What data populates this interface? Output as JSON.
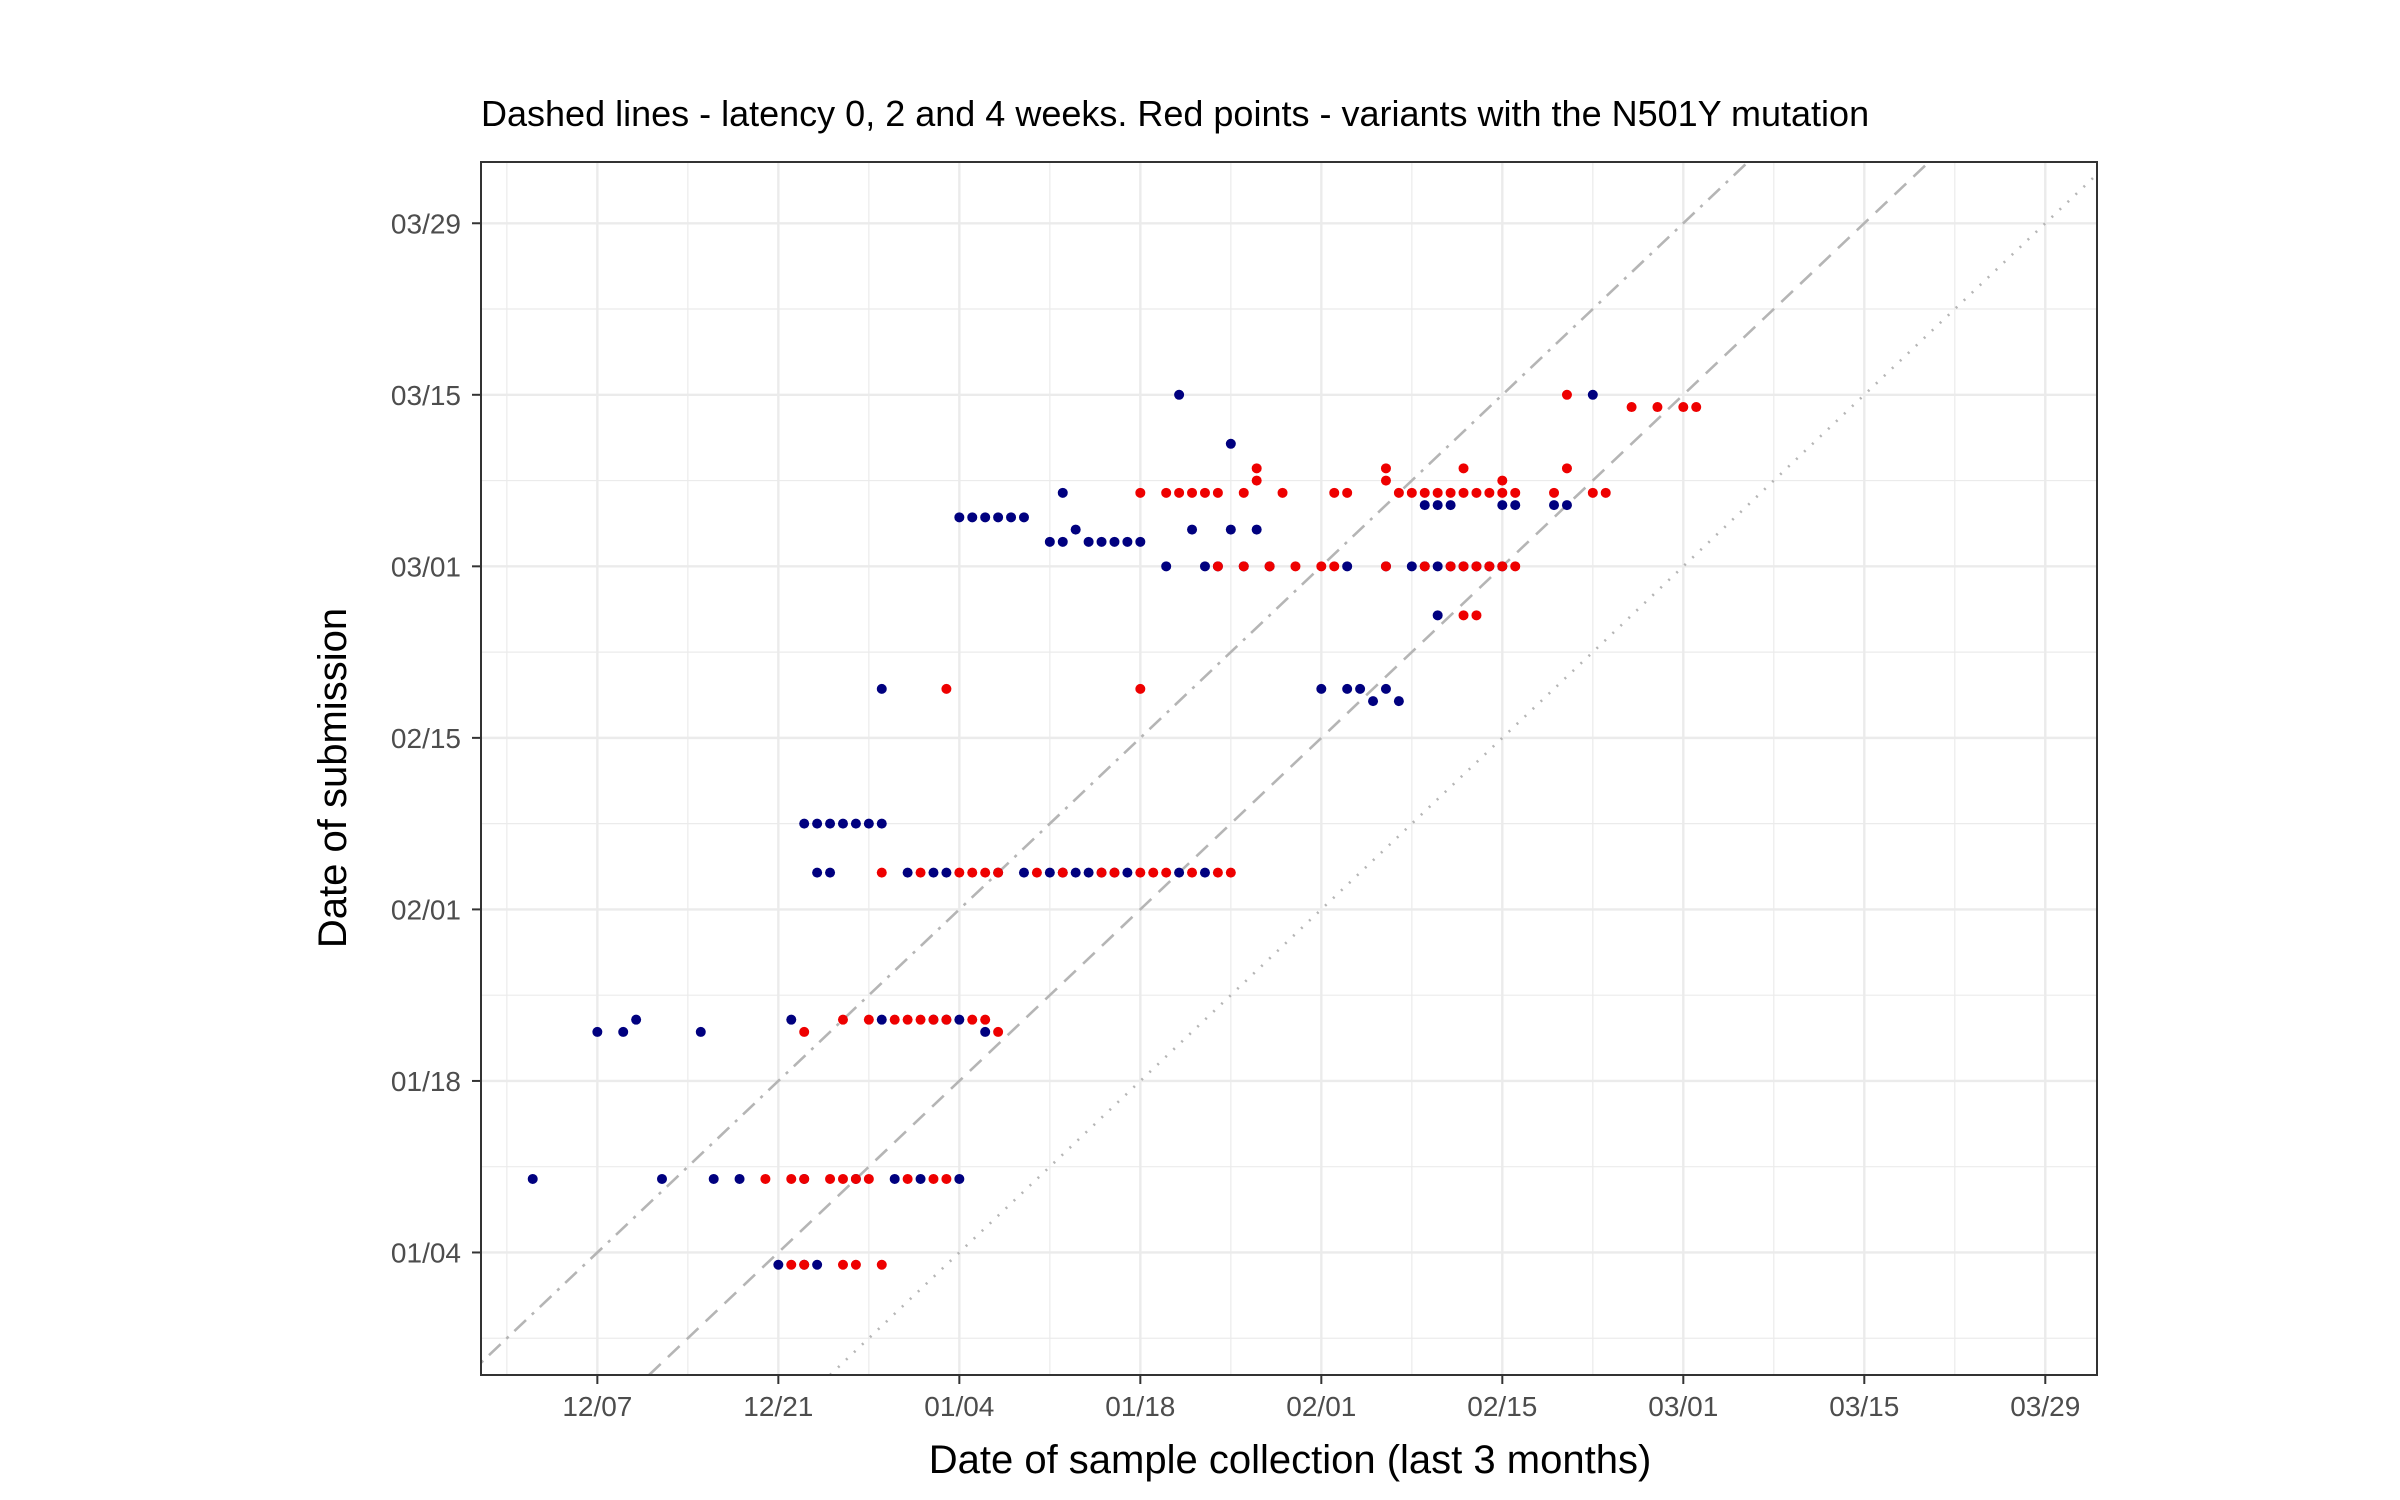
{
  "chart_data": {
    "type": "scatter",
    "title": "Dashed lines - latency 0, 2 and 4 weeks. Red points - variants with the N501Y mutation",
    "xlabel": "Date of sample collection (last 3 months)",
    "ylabel": "Date of submission",
    "x_axis": {
      "type": "date",
      "range": [
        "2020-11-28",
        "2021-04-02"
      ],
      "ticks": [
        {
          "date": "2020-12-07",
          "label": "12/07"
        },
        {
          "date": "2020-12-21",
          "label": "12/21"
        },
        {
          "date": "2021-01-04",
          "label": "01/04"
        },
        {
          "date": "2021-01-18",
          "label": "01/18"
        },
        {
          "date": "2021-02-01",
          "label": "02/01"
        },
        {
          "date": "2021-02-15",
          "label": "02/15"
        },
        {
          "date": "2021-03-01",
          "label": "03/01"
        },
        {
          "date": "2021-03-15",
          "label": "03/15"
        },
        {
          "date": "2021-03-29",
          "label": "03/29"
        }
      ]
    },
    "y_axis": {
      "type": "date",
      "range": [
        "2020-12-25",
        "2021-04-03"
      ],
      "ticks": [
        {
          "date": "2021-01-04",
          "label": "01/04"
        },
        {
          "date": "2021-01-18",
          "label": "01/18"
        },
        {
          "date": "2021-02-01",
          "label": "02/01"
        },
        {
          "date": "2021-02-15",
          "label": "02/15"
        },
        {
          "date": "2021-03-01",
          "label": "03/01"
        },
        {
          "date": "2021-03-15",
          "label": "03/15"
        },
        {
          "date": "2021-03-29",
          "label": "03/29"
        }
      ]
    },
    "grid": true,
    "reference_lines": [
      {
        "latency_weeks": 0,
        "style": "dotted",
        "color": "#b5b5b5"
      },
      {
        "latency_weeks": 2,
        "style": "dashed",
        "color": "#b5b5b5"
      },
      {
        "latency_weeks": 4,
        "style": "dotdash",
        "color": "#b5b5b5"
      }
    ],
    "series": [
      {
        "color": "#00007f",
        "points": [
          [
            "2020-12-02",
            "2021-01-10"
          ],
          [
            "2020-12-12",
            "2021-01-10"
          ],
          [
            "2020-12-16",
            "2021-01-10"
          ],
          [
            "2020-12-18",
            "2021-01-10"
          ],
          [
            "2020-12-23",
            "2021-01-10"
          ],
          [
            "2020-12-27",
            "2021-01-10"
          ],
          [
            "2020-12-30",
            "2021-01-10"
          ],
          [
            "2021-01-01",
            "2021-01-10"
          ],
          [
            "2021-01-04",
            "2021-01-10"
          ],
          [
            "2020-12-21",
            "2021-01-03"
          ],
          [
            "2020-12-23",
            "2021-01-03"
          ],
          [
            "2020-12-24",
            "2021-01-03"
          ],
          [
            "2020-12-07",
            "2021-01-22"
          ],
          [
            "2020-12-09",
            "2021-01-22"
          ],
          [
            "2020-12-10",
            "2021-01-23"
          ],
          [
            "2020-12-15",
            "2021-01-22"
          ],
          [
            "2020-12-22",
            "2021-01-23"
          ],
          [
            "2020-12-29",
            "2021-01-23"
          ],
          [
            "2021-01-02",
            "2021-01-23"
          ],
          [
            "2021-01-03",
            "2021-01-23"
          ],
          [
            "2021-01-04",
            "2021-01-23"
          ],
          [
            "2021-01-06",
            "2021-01-22"
          ],
          [
            "2020-12-23",
            "2021-02-08"
          ],
          [
            "2020-12-24",
            "2021-02-08"
          ],
          [
            "2020-12-25",
            "2021-02-08"
          ],
          [
            "2020-12-26",
            "2021-02-08"
          ],
          [
            "2020-12-27",
            "2021-02-08"
          ],
          [
            "2020-12-28",
            "2021-02-08"
          ],
          [
            "2020-12-29",
            "2021-02-08"
          ],
          [
            "2020-12-24",
            "2021-02-04"
          ],
          [
            "2020-12-25",
            "2021-02-04"
          ],
          [
            "2020-12-31",
            "2021-02-04"
          ],
          [
            "2021-01-02",
            "2021-02-04"
          ],
          [
            "2021-01-03",
            "2021-02-04"
          ],
          [
            "2021-01-07",
            "2021-02-04"
          ],
          [
            "2021-01-09",
            "2021-02-04"
          ],
          [
            "2021-01-11",
            "2021-02-04"
          ],
          [
            "2021-01-12",
            "2021-02-04"
          ],
          [
            "2021-01-13",
            "2021-02-04"
          ],
          [
            "2021-01-14",
            "2021-02-04"
          ],
          [
            "2021-01-15",
            "2021-02-04"
          ],
          [
            "2021-01-16",
            "2021-02-04"
          ],
          [
            "2021-01-17",
            "2021-02-04"
          ],
          [
            "2021-01-21",
            "2021-02-04"
          ],
          [
            "2021-01-23",
            "2021-02-04"
          ],
          [
            "2020-12-29",
            "2021-02-19"
          ],
          [
            "2021-02-01",
            "2021-02-19"
          ],
          [
            "2021-02-03",
            "2021-02-19"
          ],
          [
            "2021-02-04",
            "2021-02-19"
          ],
          [
            "2021-02-05",
            "2021-02-18"
          ],
          [
            "2021-02-06",
            "2021-02-19"
          ],
          [
            "2021-02-07",
            "2021-02-18"
          ],
          [
            "2021-01-21",
            "2021-03-15"
          ],
          [
            "2021-01-25",
            "2021-03-11"
          ],
          [
            "2021-01-22",
            "2021-03-04"
          ],
          [
            "2021-01-25",
            "2021-03-04"
          ],
          [
            "2021-01-27",
            "2021-03-04"
          ],
          [
            "2021-01-04",
            "2021-03-05"
          ],
          [
            "2021-01-05",
            "2021-03-05"
          ],
          [
            "2021-01-06",
            "2021-03-05"
          ],
          [
            "2021-01-07",
            "2021-03-05"
          ],
          [
            "2021-01-08",
            "2021-03-05"
          ],
          [
            "2021-01-09",
            "2021-03-05"
          ],
          [
            "2021-01-11",
            "2021-03-03"
          ],
          [
            "2021-01-12",
            "2021-03-03"
          ],
          [
            "2021-01-13",
            "2021-03-04"
          ],
          [
            "2021-01-14",
            "2021-03-03"
          ],
          [
            "2021-01-15",
            "2021-03-03"
          ],
          [
            "2021-01-16",
            "2021-03-03"
          ],
          [
            "2021-01-17",
            "2021-03-03"
          ],
          [
            "2021-01-18",
            "2021-03-03"
          ],
          [
            "2021-01-12",
            "2021-03-07"
          ],
          [
            "2021-01-20",
            "2021-03-01"
          ],
          [
            "2021-01-23",
            "2021-03-01"
          ],
          [
            "2021-01-24",
            "2021-03-01"
          ],
          [
            "2021-01-26",
            "2021-03-01"
          ],
          [
            "2021-01-28",
            "2021-03-01"
          ],
          [
            "2021-02-03",
            "2021-03-01"
          ],
          [
            "2021-02-06",
            "2021-03-01"
          ],
          [
            "2021-02-08",
            "2021-03-01"
          ],
          [
            "2021-02-09",
            "2021-03-01"
          ],
          [
            "2021-02-10",
            "2021-03-01"
          ],
          [
            "2021-02-11",
            "2021-03-01"
          ],
          [
            "2021-02-12",
            "2021-03-01"
          ],
          [
            "2021-02-13",
            "2021-03-01"
          ],
          [
            "2021-02-14",
            "2021-03-01"
          ],
          [
            "2021-02-15",
            "2021-03-01"
          ],
          [
            "2021-02-09",
            "2021-03-06"
          ],
          [
            "2021-02-10",
            "2021-03-06"
          ],
          [
            "2021-02-11",
            "2021-03-06"
          ],
          [
            "2021-02-15",
            "2021-03-06"
          ],
          [
            "2021-02-16",
            "2021-03-06"
          ],
          [
            "2021-02-19",
            "2021-03-06"
          ],
          [
            "2021-02-20",
            "2021-03-06"
          ],
          [
            "2021-02-10",
            "2021-02-25"
          ],
          [
            "2021-02-22",
            "2021-03-15"
          ]
        ]
      },
      {
        "color": "#ee0000",
        "points": [
          [
            "2020-12-20",
            "2021-01-10"
          ],
          [
            "2020-12-22",
            "2021-01-10"
          ],
          [
            "2020-12-23",
            "2021-01-10"
          ],
          [
            "2020-12-25",
            "2021-01-10"
          ],
          [
            "2020-12-26",
            "2021-01-10"
          ],
          [
            "2020-12-27",
            "2021-01-10"
          ],
          [
            "2020-12-28",
            "2021-01-10"
          ],
          [
            "2020-12-31",
            "2021-01-10"
          ],
          [
            "2021-01-02",
            "2021-01-10"
          ],
          [
            "2021-01-03",
            "2021-01-10"
          ],
          [
            "2020-12-22",
            "2021-01-03"
          ],
          [
            "2020-12-23",
            "2021-01-03"
          ],
          [
            "2020-12-26",
            "2021-01-03"
          ],
          [
            "2020-12-27",
            "2021-01-03"
          ],
          [
            "2020-12-29",
            "2021-01-03"
          ],
          [
            "2020-12-23",
            "2021-01-22"
          ],
          [
            "2020-12-26",
            "2021-01-23"
          ],
          [
            "2020-12-28",
            "2021-01-23"
          ],
          [
            "2020-12-30",
            "2021-01-23"
          ],
          [
            "2020-12-31",
            "2021-01-23"
          ],
          [
            "2021-01-01",
            "2021-01-23"
          ],
          [
            "2021-01-02",
            "2021-01-23"
          ],
          [
            "2021-01-03",
            "2021-01-23"
          ],
          [
            "2021-01-05",
            "2021-01-23"
          ],
          [
            "2021-01-06",
            "2021-01-23"
          ],
          [
            "2021-01-07",
            "2021-01-22"
          ],
          [
            "2020-12-29",
            "2021-02-04"
          ],
          [
            "2021-01-01",
            "2021-02-04"
          ],
          [
            "2021-01-04",
            "2021-02-04"
          ],
          [
            "2021-01-05",
            "2021-02-04"
          ],
          [
            "2021-01-06",
            "2021-02-04"
          ],
          [
            "2021-01-07",
            "2021-02-04"
          ],
          [
            "2021-01-10",
            "2021-02-04"
          ],
          [
            "2021-01-12",
            "2021-02-04"
          ],
          [
            "2021-01-15",
            "2021-02-04"
          ],
          [
            "2021-01-16",
            "2021-02-04"
          ],
          [
            "2021-01-18",
            "2021-02-04"
          ],
          [
            "2021-01-19",
            "2021-02-04"
          ],
          [
            "2021-01-20",
            "2021-02-04"
          ],
          [
            "2021-01-22",
            "2021-02-04"
          ],
          [
            "2021-01-24",
            "2021-02-04"
          ],
          [
            "2021-01-25",
            "2021-02-04"
          ],
          [
            "2021-01-03",
            "2021-02-19"
          ],
          [
            "2021-01-18",
            "2021-02-19"
          ],
          [
            "2021-01-18",
            "2021-03-07"
          ],
          [
            "2021-01-20",
            "2021-03-07"
          ],
          [
            "2021-01-21",
            "2021-03-07"
          ],
          [
            "2021-01-22",
            "2021-03-07"
          ],
          [
            "2021-01-23",
            "2021-03-07"
          ],
          [
            "2021-01-24",
            "2021-03-07"
          ],
          [
            "2021-01-26",
            "2021-03-07"
          ],
          [
            "2021-01-27",
            "2021-03-08"
          ],
          [
            "2021-01-29",
            "2021-03-07"
          ],
          [
            "2021-01-27",
            "2021-03-09"
          ],
          [
            "2021-02-02",
            "2021-03-07"
          ],
          [
            "2021-02-03",
            "2021-03-07"
          ],
          [
            "2021-02-06",
            "2021-03-08"
          ],
          [
            "2021-02-07",
            "2021-03-07"
          ],
          [
            "2021-02-08",
            "2021-03-07"
          ],
          [
            "2021-02-09",
            "2021-03-07"
          ],
          [
            "2021-02-10",
            "2021-03-07"
          ],
          [
            "2021-02-11",
            "2021-03-07"
          ],
          [
            "2021-02-12",
            "2021-03-07"
          ],
          [
            "2021-02-13",
            "2021-03-07"
          ],
          [
            "2021-02-14",
            "2021-03-07"
          ],
          [
            "2021-02-15",
            "2021-03-07"
          ],
          [
            "2021-02-16",
            "2021-03-07"
          ],
          [
            "2021-02-06",
            "2021-03-09"
          ],
          [
            "2021-02-12",
            "2021-03-09"
          ],
          [
            "2021-02-15",
            "2021-03-08"
          ],
          [
            "2021-01-24",
            "2021-03-01"
          ],
          [
            "2021-01-26",
            "2021-03-01"
          ],
          [
            "2021-01-28",
            "2021-03-01"
          ],
          [
            "2021-01-30",
            "2021-03-01"
          ],
          [
            "2021-02-01",
            "2021-03-01"
          ],
          [
            "2021-02-02",
            "2021-03-01"
          ],
          [
            "2021-02-06",
            "2021-03-01"
          ],
          [
            "2021-02-09",
            "2021-03-01"
          ],
          [
            "2021-02-11",
            "2021-03-01"
          ],
          [
            "2021-02-12",
            "2021-03-01"
          ],
          [
            "2021-02-13",
            "2021-03-01"
          ],
          [
            "2021-02-14",
            "2021-03-01"
          ],
          [
            "2021-02-15",
            "2021-03-01"
          ],
          [
            "2021-02-16",
            "2021-03-01"
          ],
          [
            "2021-02-19",
            "2021-03-07"
          ],
          [
            "2021-02-22",
            "2021-03-07"
          ],
          [
            "2021-02-23",
            "2021-03-07"
          ],
          [
            "2021-02-20",
            "2021-03-09"
          ],
          [
            "2021-02-12",
            "2021-02-25"
          ],
          [
            "2021-02-13",
            "2021-02-25"
          ],
          [
            "2021-02-20",
            "2021-03-15"
          ],
          [
            "2021-02-25",
            "2021-03-14"
          ],
          [
            "2021-02-27",
            "2021-03-14"
          ],
          [
            "2021-03-01",
            "2021-03-14"
          ],
          [
            "2021-03-02",
            "2021-03-14"
          ]
        ]
      }
    ]
  }
}
